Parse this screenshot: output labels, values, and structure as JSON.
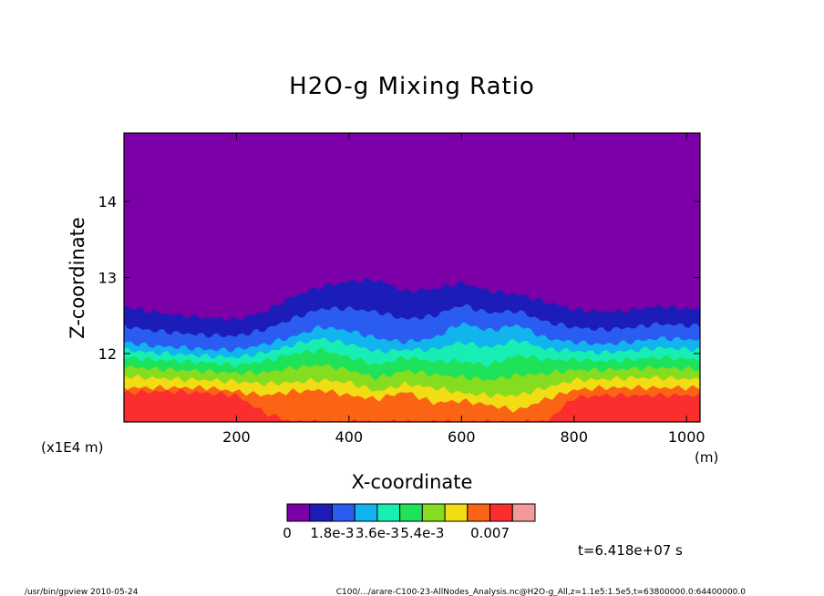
{
  "chart_data": {
    "type": "heatmap",
    "title": "H2O-g Mixing Ratio",
    "xlabel": "X-coordinate",
    "ylabel": "Z-coordinate",
    "x_unit": "(m)",
    "y_unit": "(x1E4 m)",
    "xlim": [
      0,
      1024
    ],
    "ylim": [
      11.1,
      14.9
    ],
    "x_ticks": [
      200,
      400,
      600,
      800,
      1000
    ],
    "y_ticks": [
      12,
      13,
      14
    ],
    "colorbar": {
      "levels": [
        0,
        0.0009,
        0.0018,
        0.0027,
        0.0036,
        0.0045,
        0.0054,
        0.0063,
        0.0065,
        0.0068,
        0.007,
        0.0072
      ],
      "colors": [
        "#7b00a8",
        "#1c1cb8",
        "#2b5cf2",
        "#12b4ee",
        "#18eeb4",
        "#1ee25a",
        "#86dc1e",
        "#f2dc14",
        "#fa6414",
        "#fa2e2e",
        "#f29a9a"
      ],
      "tick_labels": [
        "0",
        "1.8e-3",
        "3.6e-3",
        "5.4e-3",
        "0.007"
      ]
    },
    "contour_boundaries_z": {
      "x": [
        0,
        50,
        100,
        150,
        200,
        250,
        300,
        350,
        400,
        450,
        500,
        550,
        600,
        650,
        700,
        750,
        800,
        850,
        900,
        950,
        1024
      ],
      "upper_edge": [
        12.62,
        12.55,
        12.5,
        12.47,
        12.45,
        12.55,
        12.75,
        12.88,
        12.95,
        12.97,
        12.82,
        12.85,
        12.93,
        12.82,
        12.78,
        12.68,
        12.58,
        12.55,
        12.57,
        12.62,
        12.58
      ],
      "cyan_edge": [
        12.15,
        12.1,
        12.08,
        12.05,
        12.05,
        12.12,
        12.22,
        12.35,
        12.3,
        12.2,
        12.15,
        12.2,
        12.4,
        12.3,
        12.38,
        12.2,
        12.15,
        12.12,
        12.15,
        12.2,
        12.18
      ],
      "green_edge": [
        11.95,
        11.92,
        11.9,
        11.88,
        11.85,
        11.9,
        12.0,
        12.05,
        11.95,
        11.85,
        11.95,
        11.9,
        11.9,
        11.85,
        11.98,
        11.92,
        11.92,
        11.9,
        11.92,
        11.95,
        11.92
      ],
      "yellow_edge": [
        11.7,
        11.68,
        11.66,
        11.65,
        11.63,
        11.6,
        11.62,
        11.65,
        11.62,
        11.5,
        11.6,
        11.55,
        11.48,
        11.45,
        11.45,
        11.55,
        11.65,
        11.66,
        11.68,
        11.68,
        11.66
      ],
      "orange_edge": [
        11.55,
        11.55,
        11.55,
        11.55,
        11.5,
        11.45,
        11.5,
        11.52,
        11.45,
        11.4,
        11.5,
        11.35,
        11.38,
        11.32,
        11.25,
        11.4,
        11.52,
        11.55,
        11.55,
        11.55,
        11.55
      ],
      "red_edge": [
        11.48,
        11.5,
        11.5,
        11.48,
        11.45,
        11.22,
        11.1,
        11.1,
        11.1,
        11.1,
        11.1,
        11.1,
        11.1,
        11.1,
        11.1,
        11.1,
        11.42,
        11.45,
        11.45,
        11.45,
        11.45
      ]
    }
  },
  "annotations": {
    "time": "t=6.418e+07 s",
    "footer_left": "/usr/bin/gpview  2010-05-24",
    "footer_right": "C100/.../arare-C100-23-AllNodes_Analysis.nc@H2O-g_All,z=1.1e5:1.5e5,t=63800000.0:64400000.0"
  }
}
